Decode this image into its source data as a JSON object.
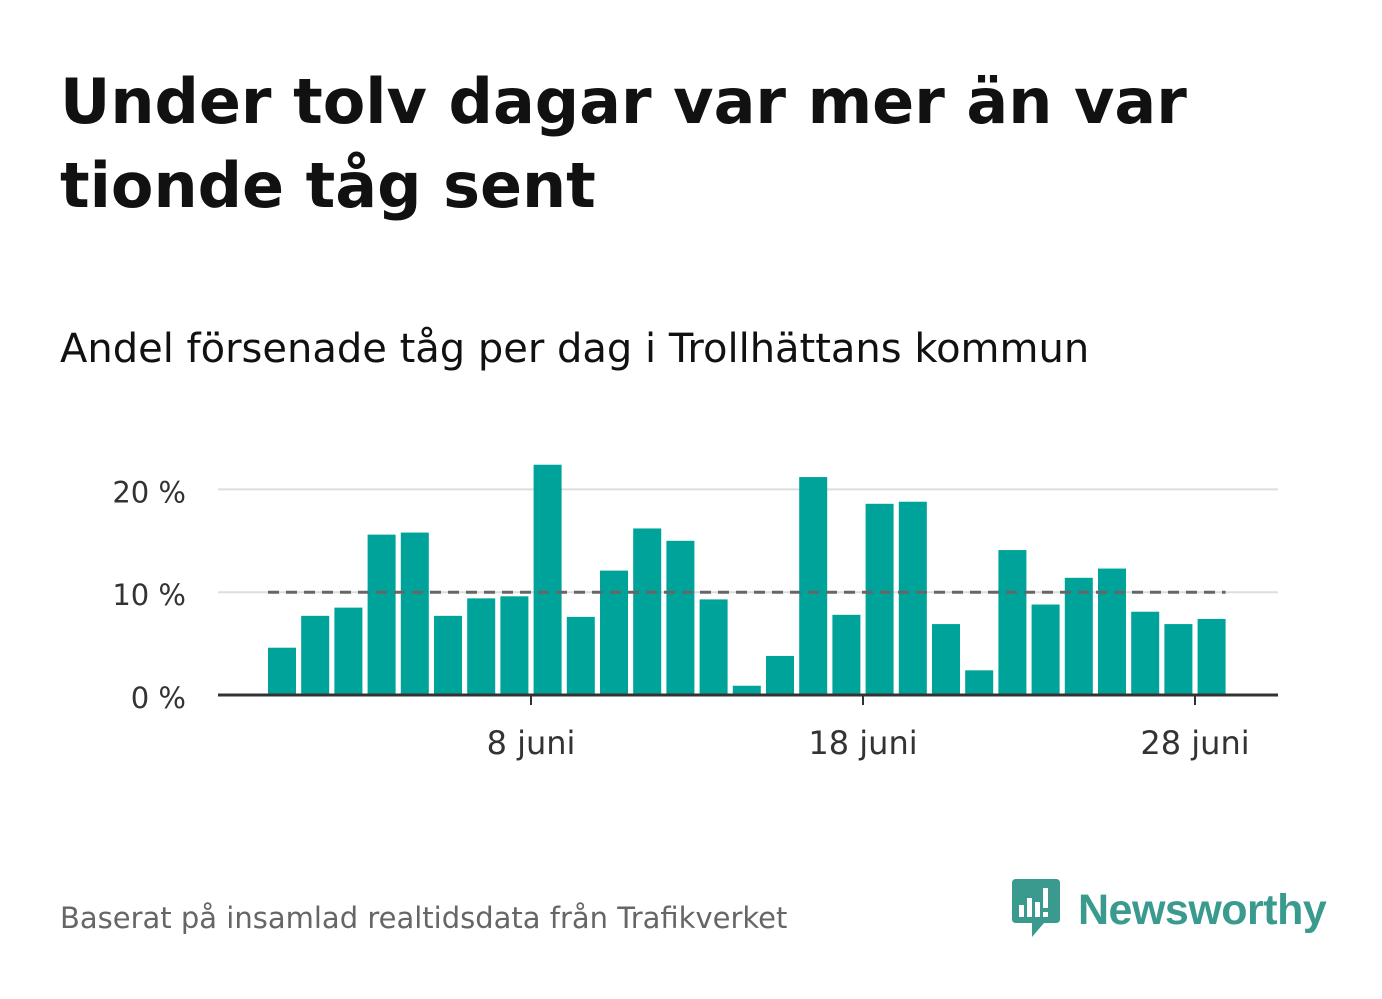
{
  "header": {
    "title": "Under tolv dagar var mer än var tionde tåg sent",
    "subtitle": "Andel försenade tåg per dag i Trollhättans kommun"
  },
  "footer": {
    "source": "Baserat på insamlad realtidsdata från Trafikverket",
    "brand": "Newsworthy",
    "brand_icon": "bar-chart-speech-bubble-icon"
  },
  "colors": {
    "bar": "#00a39a",
    "reference_line": "#666666",
    "grid": "#dddddd",
    "axis": "#333333",
    "brand": "#3a9a8e"
  },
  "chart_data": {
    "type": "bar",
    "title": "Andel försenade tåg per dag i Trollhättans kommun",
    "xlabel": "",
    "ylabel": "",
    "x": [
      "2024-06-01",
      "2024-06-02",
      "2024-06-03",
      "2024-06-04",
      "2024-06-05",
      "2024-06-06",
      "2024-06-07",
      "2024-06-08",
      "2024-06-09",
      "2024-06-10",
      "2024-06-11",
      "2024-06-12",
      "2024-06-13",
      "2024-06-14",
      "2024-06-15",
      "2024-06-16",
      "2024-06-17",
      "2024-06-18",
      "2024-06-19",
      "2024-06-20",
      "2024-06-21",
      "2024-06-22",
      "2024-06-23",
      "2024-06-24",
      "2024-06-25",
      "2024-06-26",
      "2024-06-27",
      "2024-06-28",
      "2024-06-29"
    ],
    "values": [
      4.6,
      7.7,
      8.5,
      15.6,
      15.8,
      7.7,
      9.4,
      9.6,
      22.4,
      7.6,
      12.1,
      16.2,
      15.0,
      9.3,
      0.9,
      3.8,
      21.2,
      7.8,
      18.6,
      18.8,
      6.9,
      2.4,
      14.1,
      8.8,
      11.4,
      12.3,
      8.1,
      6.9,
      7.4
    ],
    "reference_line": 10,
    "x_ticks": [
      {
        "x": "2024-06-08",
        "label": "8 juni"
      },
      {
        "x": "2024-06-18",
        "label": "18 juni"
      },
      {
        "x": "2024-06-28",
        "label": "28 juni"
      }
    ],
    "y_ticks": [
      {
        "value": 0,
        "label": "0 %"
      },
      {
        "value": 10,
        "label": "10 %"
      },
      {
        "value": 20,
        "label": "20 %"
      }
    ],
    "ylim": [
      0,
      23
    ],
    "grid": true,
    "legend": "none"
  }
}
